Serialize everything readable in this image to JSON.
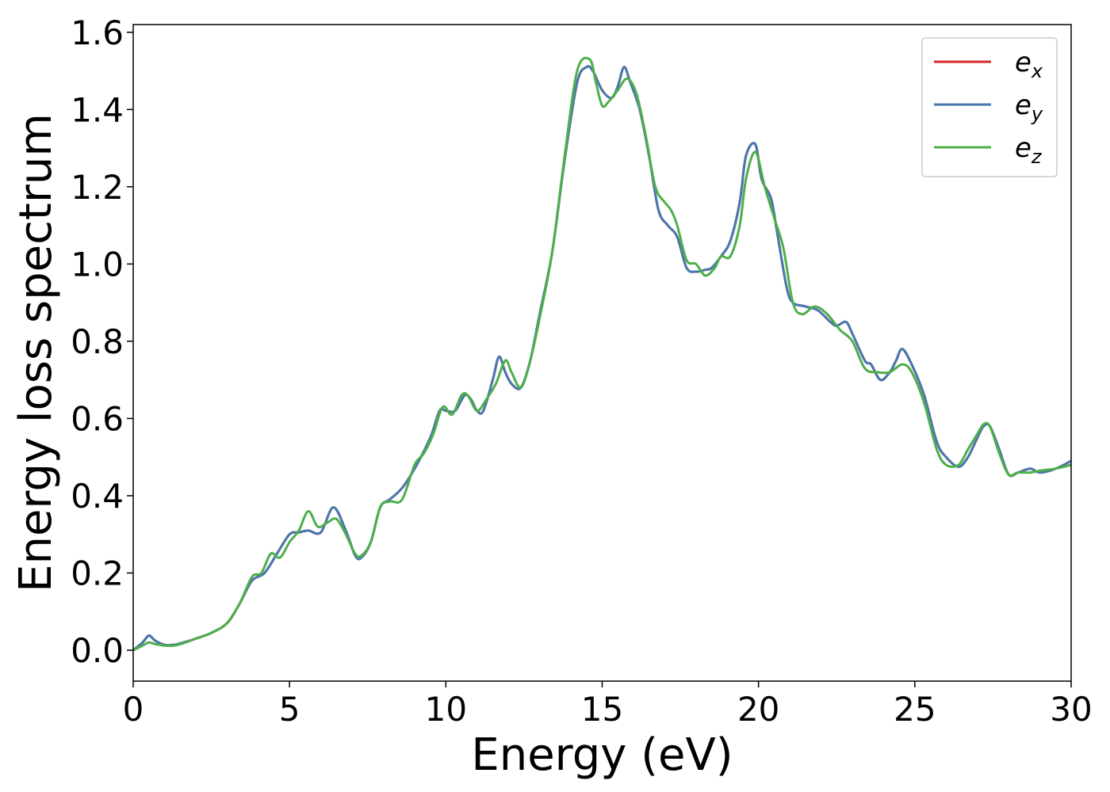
{
  "chart_data": {
    "type": "line",
    "title": "",
    "xlabel": "Energy (eV)",
    "ylabel": "Energy loss spectrum",
    "xlim": [
      0,
      30
    ],
    "ylim": [
      -0.08,
      1.62
    ],
    "xticks": [
      0,
      5,
      10,
      15,
      20,
      25,
      30
    ],
    "yticks": [
      0.0,
      0.2,
      0.4,
      0.6,
      0.8,
      1.0,
      1.2,
      1.4,
      1.6
    ],
    "xtick_labels": [
      "0",
      "5",
      "10",
      "15",
      "20",
      "25",
      "30"
    ],
    "ytick_labels": [
      "0.0",
      "0.2",
      "0.4",
      "0.6",
      "0.8",
      "1.0",
      "1.2",
      "1.4",
      "1.6"
    ],
    "grid": false,
    "legend_position": "top-right",
    "series": [
      {
        "name": "e_x",
        "label_base": "e",
        "label_sub": "x",
        "color": "#d62728",
        "x": [
          0,
          0.3,
          0.5,
          0.7,
          1.0,
          1.3,
          1.6,
          2.0,
          2.5,
          3.0,
          3.4,
          3.8,
          4.2,
          4.6,
          5.0,
          5.3,
          5.6,
          6.0,
          6.4,
          6.8,
          7.1,
          7.3,
          7.6,
          7.9,
          8.2,
          8.6,
          9.0,
          9.5,
          9.8,
          10.0,
          10.3,
          10.6,
          10.8,
          11.0,
          11.2,
          11.5,
          11.7,
          11.9,
          12.1,
          12.4,
          12.7,
          13.0,
          13.4,
          13.8,
          14.2,
          14.5,
          14.7,
          15.0,
          15.3,
          15.5,
          15.7,
          15.9,
          16.2,
          16.5,
          16.8,
          17.1,
          17.4,
          17.7,
          18.0,
          18.3,
          18.5,
          18.8,
          19.1,
          19.4,
          19.6,
          19.9,
          20.1,
          20.4,
          20.6,
          20.9,
          21.1,
          21.5,
          21.9,
          22.3,
          22.5,
          22.8,
          23.0,
          23.4,
          23.6,
          23.9,
          24.2,
          24.4,
          24.6,
          24.9,
          25.3,
          25.7,
          26.0,
          26.4,
          26.7,
          27.0,
          27.2,
          27.4,
          27.7,
          28.0,
          28.3,
          28.7,
          29.0,
          29.5,
          30.0
        ],
        "y": [
          0.0,
          0.02,
          0.038,
          0.025,
          0.014,
          0.014,
          0.02,
          0.03,
          0.045,
          0.07,
          0.12,
          0.18,
          0.2,
          0.25,
          0.3,
          0.305,
          0.31,
          0.305,
          0.37,
          0.31,
          0.245,
          0.24,
          0.28,
          0.37,
          0.39,
          0.42,
          0.47,
          0.55,
          0.62,
          0.62,
          0.62,
          0.66,
          0.65,
          0.62,
          0.62,
          0.7,
          0.76,
          0.72,
          0.69,
          0.68,
          0.75,
          0.87,
          1.03,
          1.27,
          1.47,
          1.51,
          1.5,
          1.45,
          1.43,
          1.46,
          1.51,
          1.47,
          1.4,
          1.28,
          1.14,
          1.1,
          1.07,
          0.99,
          0.98,
          0.985,
          0.99,
          1.02,
          1.06,
          1.16,
          1.28,
          1.31,
          1.22,
          1.17,
          1.08,
          0.94,
          0.9,
          0.89,
          0.88,
          0.85,
          0.84,
          0.85,
          0.82,
          0.75,
          0.74,
          0.7,
          0.72,
          0.75,
          0.78,
          0.74,
          0.66,
          0.54,
          0.5,
          0.475,
          0.5,
          0.55,
          0.58,
          0.58,
          0.52,
          0.455,
          0.46,
          0.47,
          0.46,
          0.47,
          0.49
        ]
      },
      {
        "name": "e_y",
        "label_base": "e",
        "label_sub": "y",
        "color": "#4878b0",
        "x": [
          0,
          0.3,
          0.5,
          0.7,
          1.0,
          1.3,
          1.6,
          2.0,
          2.5,
          3.0,
          3.4,
          3.8,
          4.2,
          4.6,
          5.0,
          5.3,
          5.6,
          6.0,
          6.4,
          6.8,
          7.1,
          7.3,
          7.6,
          7.9,
          8.2,
          8.6,
          9.0,
          9.5,
          9.8,
          10.0,
          10.3,
          10.6,
          10.8,
          11.0,
          11.2,
          11.5,
          11.7,
          11.9,
          12.1,
          12.4,
          12.7,
          13.0,
          13.4,
          13.8,
          14.2,
          14.5,
          14.7,
          15.0,
          15.3,
          15.5,
          15.7,
          15.9,
          16.2,
          16.5,
          16.8,
          17.1,
          17.4,
          17.7,
          18.0,
          18.3,
          18.5,
          18.8,
          19.1,
          19.4,
          19.6,
          19.9,
          20.1,
          20.4,
          20.6,
          20.9,
          21.1,
          21.5,
          21.9,
          22.3,
          22.5,
          22.8,
          23.0,
          23.4,
          23.6,
          23.9,
          24.2,
          24.4,
          24.6,
          24.9,
          25.3,
          25.7,
          26.0,
          26.4,
          26.7,
          27.0,
          27.2,
          27.4,
          27.7,
          28.0,
          28.3,
          28.7,
          29.0,
          29.5,
          30.0
        ],
        "y": [
          0.0,
          0.02,
          0.038,
          0.025,
          0.014,
          0.014,
          0.02,
          0.03,
          0.045,
          0.07,
          0.12,
          0.18,
          0.2,
          0.25,
          0.3,
          0.305,
          0.31,
          0.305,
          0.37,
          0.31,
          0.245,
          0.24,
          0.28,
          0.37,
          0.39,
          0.42,
          0.47,
          0.55,
          0.62,
          0.62,
          0.62,
          0.66,
          0.65,
          0.62,
          0.62,
          0.7,
          0.76,
          0.72,
          0.69,
          0.68,
          0.75,
          0.87,
          1.03,
          1.27,
          1.47,
          1.51,
          1.5,
          1.45,
          1.43,
          1.46,
          1.51,
          1.47,
          1.4,
          1.28,
          1.14,
          1.1,
          1.07,
          0.99,
          0.98,
          0.985,
          0.99,
          1.02,
          1.06,
          1.16,
          1.28,
          1.31,
          1.22,
          1.17,
          1.08,
          0.94,
          0.9,
          0.89,
          0.88,
          0.85,
          0.84,
          0.85,
          0.82,
          0.75,
          0.74,
          0.7,
          0.72,
          0.75,
          0.78,
          0.74,
          0.66,
          0.54,
          0.5,
          0.475,
          0.5,
          0.55,
          0.58,
          0.58,
          0.52,
          0.455,
          0.46,
          0.47,
          0.46,
          0.47,
          0.49
        ]
      },
      {
        "name": "e_z",
        "label_base": "e",
        "label_sub": "z",
        "color": "#4daf4a",
        "x": [
          0,
          0.3,
          0.5,
          0.7,
          1.0,
          1.3,
          1.6,
          2.0,
          2.5,
          3.0,
          3.4,
          3.8,
          4.1,
          4.4,
          4.7,
          5.0,
          5.3,
          5.6,
          5.9,
          6.2,
          6.5,
          6.8,
          7.1,
          7.3,
          7.6,
          7.9,
          8.2,
          8.6,
          9.0,
          9.3,
          9.6,
          9.9,
          10.2,
          10.5,
          10.7,
          11.0,
          11.3,
          11.6,
          11.9,
          12.1,
          12.4,
          12.7,
          13.0,
          13.4,
          13.8,
          14.2,
          14.6,
          14.8,
          15.0,
          15.2,
          15.5,
          15.8,
          16.1,
          16.4,
          16.7,
          17.0,
          17.2,
          17.4,
          17.7,
          18.0,
          18.3,
          18.6,
          18.8,
          19.1,
          19.4,
          19.6,
          19.9,
          20.2,
          20.5,
          20.8,
          21.1,
          21.4,
          21.8,
          22.2,
          22.6,
          23.0,
          23.4,
          23.8,
          24.2,
          24.6,
          24.9,
          25.3,
          25.7,
          26.0,
          26.4,
          26.7,
          27.0,
          27.2,
          27.4,
          27.7,
          28.0,
          28.3,
          28.7,
          29.0,
          29.5,
          30.0
        ],
        "y": [
          0.0,
          0.012,
          0.02,
          0.016,
          0.012,
          0.012,
          0.018,
          0.03,
          0.045,
          0.07,
          0.12,
          0.19,
          0.2,
          0.25,
          0.24,
          0.28,
          0.31,
          0.36,
          0.32,
          0.33,
          0.34,
          0.3,
          0.25,
          0.245,
          0.28,
          0.37,
          0.385,
          0.39,
          0.48,
          0.51,
          0.56,
          0.63,
          0.61,
          0.66,
          0.66,
          0.62,
          0.65,
          0.69,
          0.75,
          0.72,
          0.68,
          0.75,
          0.86,
          1.03,
          1.28,
          1.5,
          1.53,
          1.47,
          1.41,
          1.42,
          1.45,
          1.48,
          1.44,
          1.33,
          1.2,
          1.16,
          1.14,
          1.1,
          1.01,
          1.0,
          0.97,
          0.99,
          1.02,
          1.02,
          1.1,
          1.22,
          1.29,
          1.2,
          1.12,
          1.04,
          0.9,
          0.87,
          0.89,
          0.87,
          0.83,
          0.8,
          0.73,
          0.72,
          0.72,
          0.74,
          0.72,
          0.64,
          0.52,
          0.48,
          0.48,
          0.52,
          0.56,
          0.585,
          0.58,
          0.51,
          0.455,
          0.46,
          0.46,
          0.465,
          0.47,
          0.48
        ]
      }
    ]
  }
}
